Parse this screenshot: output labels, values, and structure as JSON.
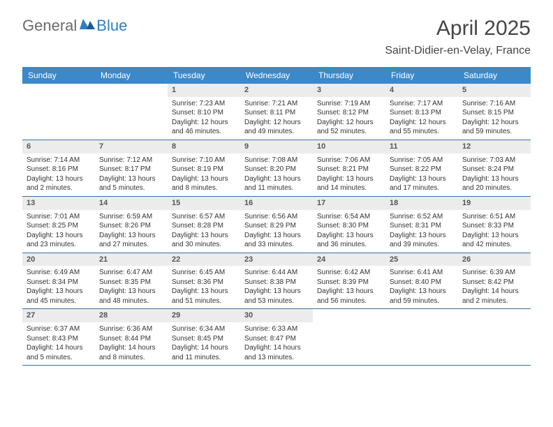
{
  "logo": {
    "general": "General",
    "blue": "Blue"
  },
  "title": {
    "month_year": "April 2025",
    "location": "Saint-Didier-en-Velay, France"
  },
  "colors": {
    "header_bg": "#3b89c9",
    "header_text": "#ffffff",
    "daynum_bg": "#ececec",
    "daynum_text": "#555555",
    "body_text": "#333333",
    "week_border": "#3b6fa0",
    "logo_gray": "#6b6b6b",
    "logo_blue": "#2f7fc2"
  },
  "weekdays": [
    "Sunday",
    "Monday",
    "Tuesday",
    "Wednesday",
    "Thursday",
    "Friday",
    "Saturday"
  ],
  "weeks": [
    [
      {
        "empty": true
      },
      {
        "empty": true
      },
      {
        "n": "1",
        "sr": "7:23 AM",
        "ss": "8:10 PM",
        "dl": "12 hours and 46 minutes."
      },
      {
        "n": "2",
        "sr": "7:21 AM",
        "ss": "8:11 PM",
        "dl": "12 hours and 49 minutes."
      },
      {
        "n": "3",
        "sr": "7:19 AM",
        "ss": "8:12 PM",
        "dl": "12 hours and 52 minutes."
      },
      {
        "n": "4",
        "sr": "7:17 AM",
        "ss": "8:13 PM",
        "dl": "12 hours and 55 minutes."
      },
      {
        "n": "5",
        "sr": "7:16 AM",
        "ss": "8:15 PM",
        "dl": "12 hours and 59 minutes."
      }
    ],
    [
      {
        "n": "6",
        "sr": "7:14 AM",
        "ss": "8:16 PM",
        "dl": "13 hours and 2 minutes."
      },
      {
        "n": "7",
        "sr": "7:12 AM",
        "ss": "8:17 PM",
        "dl": "13 hours and 5 minutes."
      },
      {
        "n": "8",
        "sr": "7:10 AM",
        "ss": "8:19 PM",
        "dl": "13 hours and 8 minutes."
      },
      {
        "n": "9",
        "sr": "7:08 AM",
        "ss": "8:20 PM",
        "dl": "13 hours and 11 minutes."
      },
      {
        "n": "10",
        "sr": "7:06 AM",
        "ss": "8:21 PM",
        "dl": "13 hours and 14 minutes."
      },
      {
        "n": "11",
        "sr": "7:05 AM",
        "ss": "8:22 PM",
        "dl": "13 hours and 17 minutes."
      },
      {
        "n": "12",
        "sr": "7:03 AM",
        "ss": "8:24 PM",
        "dl": "13 hours and 20 minutes."
      }
    ],
    [
      {
        "n": "13",
        "sr": "7:01 AM",
        "ss": "8:25 PM",
        "dl": "13 hours and 23 minutes."
      },
      {
        "n": "14",
        "sr": "6:59 AM",
        "ss": "8:26 PM",
        "dl": "13 hours and 27 minutes."
      },
      {
        "n": "15",
        "sr": "6:57 AM",
        "ss": "8:28 PM",
        "dl": "13 hours and 30 minutes."
      },
      {
        "n": "16",
        "sr": "6:56 AM",
        "ss": "8:29 PM",
        "dl": "13 hours and 33 minutes."
      },
      {
        "n": "17",
        "sr": "6:54 AM",
        "ss": "8:30 PM",
        "dl": "13 hours and 36 minutes."
      },
      {
        "n": "18",
        "sr": "6:52 AM",
        "ss": "8:31 PM",
        "dl": "13 hours and 39 minutes."
      },
      {
        "n": "19",
        "sr": "6:51 AM",
        "ss": "8:33 PM",
        "dl": "13 hours and 42 minutes."
      }
    ],
    [
      {
        "n": "20",
        "sr": "6:49 AM",
        "ss": "8:34 PM",
        "dl": "13 hours and 45 minutes."
      },
      {
        "n": "21",
        "sr": "6:47 AM",
        "ss": "8:35 PM",
        "dl": "13 hours and 48 minutes."
      },
      {
        "n": "22",
        "sr": "6:45 AM",
        "ss": "8:36 PM",
        "dl": "13 hours and 51 minutes."
      },
      {
        "n": "23",
        "sr": "6:44 AM",
        "ss": "8:38 PM",
        "dl": "13 hours and 53 minutes."
      },
      {
        "n": "24",
        "sr": "6:42 AM",
        "ss": "8:39 PM",
        "dl": "13 hours and 56 minutes."
      },
      {
        "n": "25",
        "sr": "6:41 AM",
        "ss": "8:40 PM",
        "dl": "13 hours and 59 minutes."
      },
      {
        "n": "26",
        "sr": "6:39 AM",
        "ss": "8:42 PM",
        "dl": "14 hours and 2 minutes."
      }
    ],
    [
      {
        "n": "27",
        "sr": "6:37 AM",
        "ss": "8:43 PM",
        "dl": "14 hours and 5 minutes."
      },
      {
        "n": "28",
        "sr": "6:36 AM",
        "ss": "8:44 PM",
        "dl": "14 hours and 8 minutes."
      },
      {
        "n": "29",
        "sr": "6:34 AM",
        "ss": "8:45 PM",
        "dl": "14 hours and 11 minutes."
      },
      {
        "n": "30",
        "sr": "6:33 AM",
        "ss": "8:47 PM",
        "dl": "14 hours and 13 minutes."
      },
      {
        "empty": true
      },
      {
        "empty": true
      },
      {
        "empty": true
      }
    ]
  ],
  "labels": {
    "sunrise": "Sunrise: ",
    "sunset": "Sunset: ",
    "daylight": "Daylight: "
  }
}
